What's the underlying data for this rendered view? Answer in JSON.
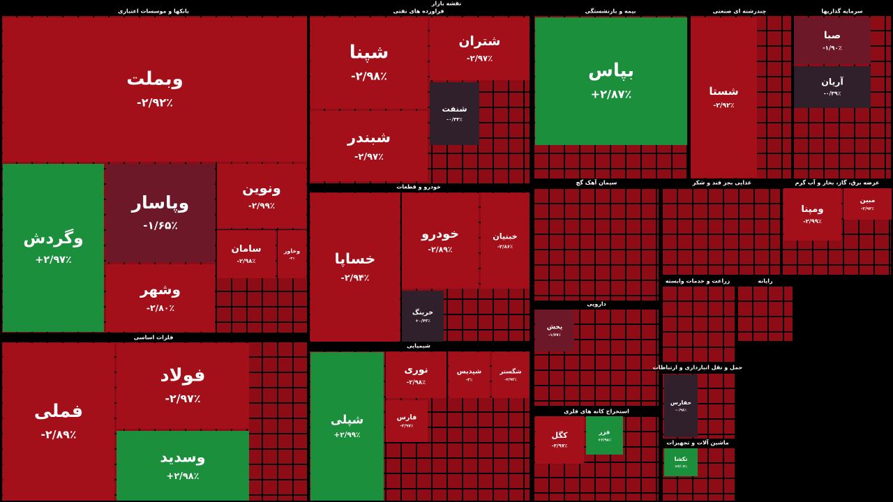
{
  "chart_data": {
    "type": "treemap",
    "title": "نقشه بازار",
    "sectors": [
      {
        "name": "بانکها و موسسات اعتباری",
        "tiles": [
          {
            "name": "وبملت",
            "value": -2.92,
            "value_label": "-۲/۹۲٪",
            "color": "#a3101a"
          },
          {
            "name": "وگردش",
            "value": 2.97,
            "value_label": "+۲/۹۷٪",
            "color": "#1b8f3c"
          },
          {
            "name": "وپاسار",
            "value": -1.65,
            "value_label": "-۱/۶۵٪",
            "color": "#6c1829"
          },
          {
            "name": "وشهر",
            "value": -2.8,
            "value_label": "-۲/۸۰٪",
            "color": "#a3101a"
          },
          {
            "name": "ونوین",
            "value": -2.99,
            "value_label": "-۲/۹۹٪",
            "color": "#a3101a"
          },
          {
            "name": "سامان",
            "value": -2.98,
            "value_label": "-۲/۹۸٪",
            "color": "#a3101a"
          },
          {
            "name": "وخاور",
            "value": -3,
            "value_label": "-۳٪",
            "color": "#a3101a"
          }
        ]
      },
      {
        "name": "فلزات اساسی",
        "tiles": [
          {
            "name": "فملی",
            "value": -2.89,
            "value_label": "-۲/۸۹٪",
            "color": "#a3101a"
          },
          {
            "name": "فولاد",
            "value": -2.97,
            "value_label": "-۲/۹۷٪",
            "color": "#a3101a"
          },
          {
            "name": "وسدید",
            "value": 2.98,
            "value_label": "+۲/۹۸٪",
            "color": "#1b8f3c"
          }
        ]
      },
      {
        "name": "فراورده های نفتی",
        "tiles": [
          {
            "name": "شپنا",
            "value": -2.98,
            "value_label": "-۲/۹۸٪",
            "color": "#a3101a"
          },
          {
            "name": "شبندر",
            "value": -2.97,
            "value_label": "-۲/۹۷٪",
            "color": "#a3101a"
          },
          {
            "name": "شتران",
            "value": -2.97,
            "value_label": "-۲/۹۷٪",
            "color": "#a3101a"
          },
          {
            "name": "شنفت",
            "value": -0.33,
            "value_label": "-۰/۳۳٪",
            "color": "#30202c"
          }
        ]
      },
      {
        "name": "خودرو و قطعات",
        "tiles": [
          {
            "name": "خساپا",
            "value": -2.94,
            "value_label": "-۲/۹۴٪",
            "color": "#a3101a"
          },
          {
            "name": "خودرو",
            "value": -2.89,
            "value_label": "-۲/۸۹٪",
            "color": "#a3101a"
          },
          {
            "name": "خبنیان",
            "value": -2.86,
            "value_label": "-۲/۸۶٪",
            "color": "#a3101a"
          },
          {
            "name": "خرینگ",
            "value": 0.43,
            "value_label": "+۰/۴۳٪",
            "color": "#30202c"
          }
        ]
      },
      {
        "name": "شیمیایی",
        "tiles": [
          {
            "name": "شپلی",
            "value": 2.99,
            "value_label": "+۲/۹۹٪",
            "color": "#1b8f3c"
          },
          {
            "name": "نوری",
            "value": -2.98,
            "value_label": "-۲/۹۸٪",
            "color": "#a3101a"
          },
          {
            "name": "شپدیس",
            "value": -3,
            "value_label": "-۳٪",
            "color": "#a3101a"
          },
          {
            "name": "شگستر",
            "value": -2.93,
            "value_label": "-۲/۹۳٪",
            "color": "#a3101a"
          },
          {
            "name": "فارس",
            "value": -2.97,
            "value_label": "-۲/۹۷٪",
            "color": "#a3101a"
          }
        ]
      },
      {
        "name": "بیمه و بازنشستگی",
        "tiles": [
          {
            "name": "بپاس",
            "value": 2.87,
            "value_label": "+۲/۸۷٪",
            "color": "#1b8f3c"
          }
        ]
      },
      {
        "name": "چندرشته ای صنعتی",
        "tiles": [
          {
            "name": "شستا",
            "value": -2.92,
            "value_label": "-۲/۹۲٪",
            "color": "#a3101a"
          }
        ]
      },
      {
        "name": "سرمایه گذاریها",
        "tiles": [
          {
            "name": "صبا",
            "value": -1.9,
            "value_label": "-۱/۹۰٪",
            "color": "#6c1829"
          },
          {
            "name": "آریان",
            "value": -0.39,
            "value_label": "-۰/۳۹٪",
            "color": "#30202c"
          }
        ]
      },
      {
        "name": "سیمان آهک گچ",
        "tiles": []
      },
      {
        "name": "غذایی بجز قند و شکر",
        "tiles": []
      },
      {
        "name": "عرضه برق، گاز، بخار و آب گرم",
        "tiles": [
          {
            "name": "ومپنا",
            "value": -2.99,
            "value_label": "-۲/۹۹٪",
            "color": "#a3101a"
          },
          {
            "name": "مبین",
            "value": -2.93,
            "value_label": "-۲/۹۳٪",
            "color": "#a3101a"
          }
        ]
      },
      {
        "name": "زراعت و خدمات وابسته",
        "tiles": []
      },
      {
        "name": "رایانه",
        "tiles": []
      },
      {
        "name": "دارویی",
        "tiles": [
          {
            "name": "پخش",
            "value": -1.77,
            "value_label": "-۱/۷۷٪",
            "color": "#6c1829"
          }
        ]
      },
      {
        "name": "استخراج کانه های فلزی",
        "tiles": [
          {
            "name": "کگل",
            "value": -2.97,
            "value_label": "-۲/۹۷٪",
            "color": "#a3101a"
          },
          {
            "name": "فزر",
            "value": 2.98,
            "value_label": "+۲/۹۸٪",
            "color": "#1b8f3c"
          }
        ]
      },
      {
        "name": "حمل و نقل انبارداری و ارتباطات",
        "tiles": [
          {
            "name": "حفارس",
            "value": -0.98,
            "value_label": "-۰/۹۸٪",
            "color": "#30202c"
          }
        ]
      },
      {
        "name": "ماشین آلات و تجهیزات",
        "tiles": [
          {
            "name": "تکشا",
            "value": 2.04,
            "value_label": "+۲/۰۴٪",
            "color": "#1b8f3c"
          }
        ]
      }
    ]
  }
}
